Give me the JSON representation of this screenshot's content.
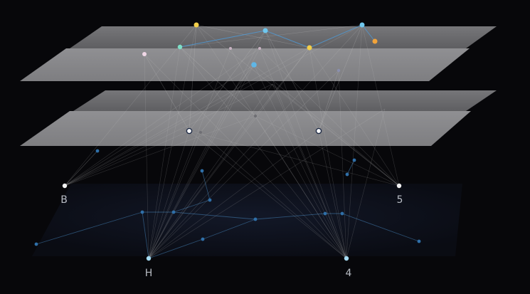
{
  "diagram": {
    "type": "multilayer-network",
    "background": "#07070a",
    "colors": {
      "plane_top": "#7d7d80",
      "plane_front": "#9a9a9d",
      "edge": "#c9c9c9",
      "blue_edge": "#4f9ad6",
      "bottom_plane": "#0d1220",
      "yellow": "#f3cf4a",
      "orange": "#f2a33a",
      "cyan": "#6fc7ee",
      "white": "#f3f3f3"
    },
    "layers": [
      {
        "id": "layer-1",
        "label": ""
      },
      {
        "id": "layer-2",
        "label": ""
      },
      {
        "id": "layer-3",
        "label": ""
      },
      {
        "id": "layer-4",
        "label": ""
      },
      {
        "id": "base-network",
        "label": ""
      }
    ],
    "labeled_nodes": [
      {
        "id": "B",
        "label": "B"
      },
      {
        "id": "S",
        "label": "5"
      },
      {
        "id": "H",
        "label": "H"
      },
      {
        "id": "A",
        "label": "4"
      }
    ]
  }
}
